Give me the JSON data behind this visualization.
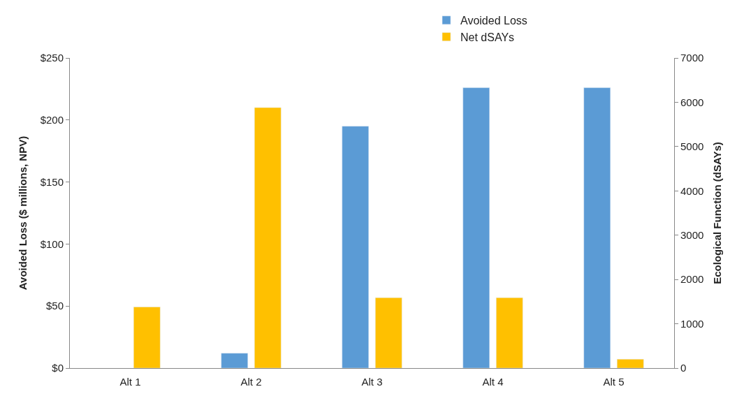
{
  "chart_data": {
    "type": "bar",
    "ylabel": "Avoided Loss ($ millions, NPV)",
    "y2label": "Ecological Function (dSAYs)",
    "categories": [
      "Alt 1",
      "Alt 2",
      "Alt 3",
      "Alt 4",
      "Alt 5"
    ],
    "series": [
      {
        "name": "Avoided Loss",
        "color": "#5b9bd5",
        "values": [
          null,
          12,
          195,
          226,
          226
        ]
      },
      {
        "name": "Net dSAYs",
        "color": "#ffc000",
        "axis": "y2",
        "values": [
          1380,
          5880,
          1590,
          1590,
          200
        ]
      }
    ],
    "ylim": [
      0,
      250
    ],
    "yticks": [
      {
        "value": 0,
        "label": "$0"
      },
      {
        "value": 50,
        "label": "$50"
      },
      {
        "value": 100,
        "label": "$100"
      },
      {
        "value": 150,
        "label": "$150"
      },
      {
        "value": 200,
        "label": "$200"
      },
      {
        "value": 250,
        "label": "$250"
      }
    ],
    "y2lim": [
      0,
      7000
    ],
    "y2ticks": [
      0,
      1000,
      2000,
      3000,
      4000,
      5000,
      6000,
      7000
    ],
    "legend": "top"
  }
}
